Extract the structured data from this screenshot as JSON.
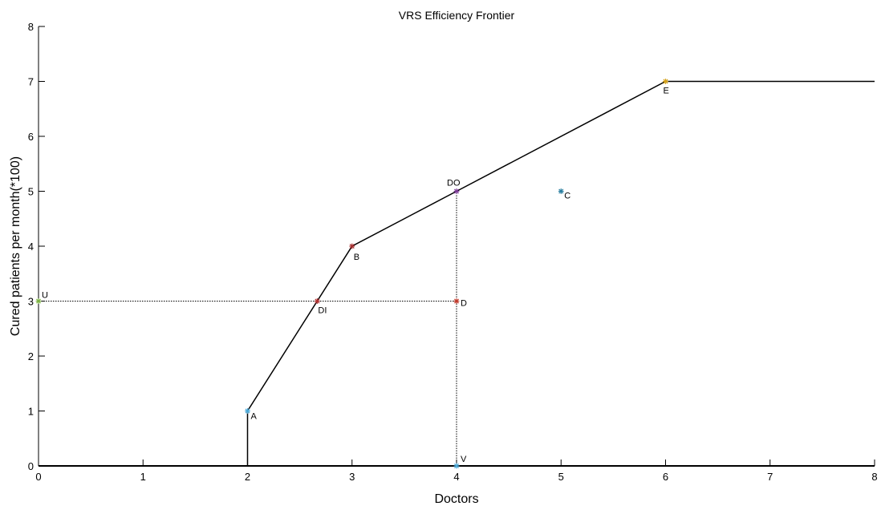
{
  "chart_data": {
    "type": "line",
    "title": "VRS Efficiency Frontier",
    "xlabel": "Doctors",
    "ylabel": "Cured patients per month(*100)",
    "xlim": [
      0,
      8
    ],
    "ylim": [
      0,
      8
    ],
    "x_ticks": [
      "0",
      "1",
      "2",
      "3",
      "4",
      "5",
      "6",
      "7",
      "8"
    ],
    "y_ticks": [
      "0",
      "1",
      "2",
      "3",
      "4",
      "5",
      "6",
      "7",
      "8"
    ],
    "grid": false,
    "frontier": {
      "x": [
        2,
        2,
        3,
        4,
        6,
        8
      ],
      "y": [
        0,
        1,
        4,
        5,
        7,
        7
      ],
      "color": "#000000"
    },
    "projection_lines": [
      {
        "x": [
          0,
          4
        ],
        "y": [
          3,
          3
        ]
      },
      {
        "x": [
          4,
          4
        ],
        "y": [
          0,
          5
        ]
      }
    ],
    "points": [
      {
        "label": "A",
        "x": 2,
        "y": 1,
        "color": "#4aa8d8"
      },
      {
        "label": "B",
        "x": 3,
        "y": 4,
        "color": "#a83232"
      },
      {
        "label": "C",
        "x": 5,
        "y": 5,
        "color": "#2a7fa0"
      },
      {
        "label": "D",
        "x": 4,
        "y": 3,
        "color": "#c0392b"
      },
      {
        "label": "E",
        "x": 6,
        "y": 7,
        "color": "#d4a017"
      },
      {
        "label": "DI",
        "x": 2.667,
        "y": 3,
        "color": "#b03030"
      },
      {
        "label": "DO",
        "x": 4,
        "y": 5,
        "color": "#7d3c98"
      },
      {
        "label": "U",
        "x": 0,
        "y": 3,
        "color": "#7cb342"
      },
      {
        "label": "V",
        "x": 4,
        "y": 0,
        "color": "#4aa8d8"
      }
    ]
  }
}
